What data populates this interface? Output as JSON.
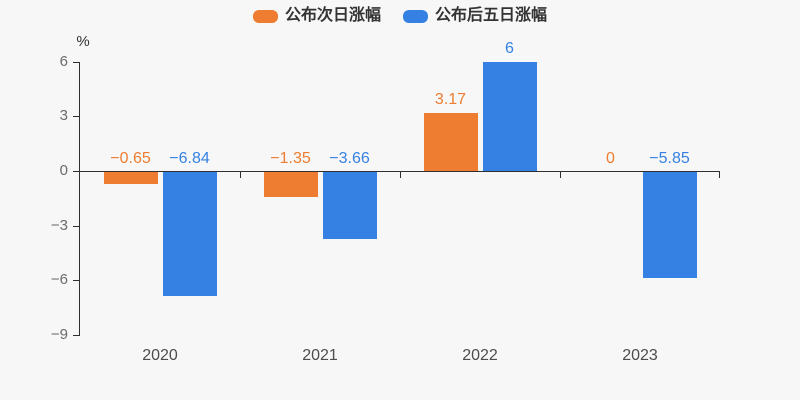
{
  "legend": {
    "items": [
      {
        "label": "公布次日涨幅",
        "color": "#ee7d31"
      },
      {
        "label": "公布后五日涨幅",
        "color": "#3581e3"
      }
    ]
  },
  "chart_data": {
    "type": "bar",
    "title": "",
    "categories": [
      "2020",
      "2021",
      "2022",
      "2023"
    ],
    "series": [
      {
        "name": "公布次日涨幅",
        "semantic": "next-day-change",
        "color": "#ee7d31",
        "values": [
          -0.65,
          -1.35,
          3.17,
          0
        ],
        "labels": [
          "−0.65",
          "−1.35",
          "3.17",
          "0"
        ]
      },
      {
        "name": "公布后五日涨幅",
        "semantic": "five-day-change",
        "color": "#3581e3",
        "values": [
          -6.84,
          -3.66,
          6,
          -5.85
        ],
        "labels": [
          "−6.84",
          "−3.66",
          "6",
          "−5.85"
        ]
      }
    ],
    "xlabel": "",
    "ylabel": "%",
    "ylim": [
      -9,
      6
    ],
    "yticks": [
      6,
      3,
      0,
      -3,
      -6,
      -9
    ],
    "ytick_labels": [
      "6",
      "3",
      "0",
      "−3",
      "−6",
      "−9"
    ],
    "grid": false,
    "legend_position": "top",
    "background_color": "#f7f7f7",
    "axis_color": "#2f2f2f"
  }
}
